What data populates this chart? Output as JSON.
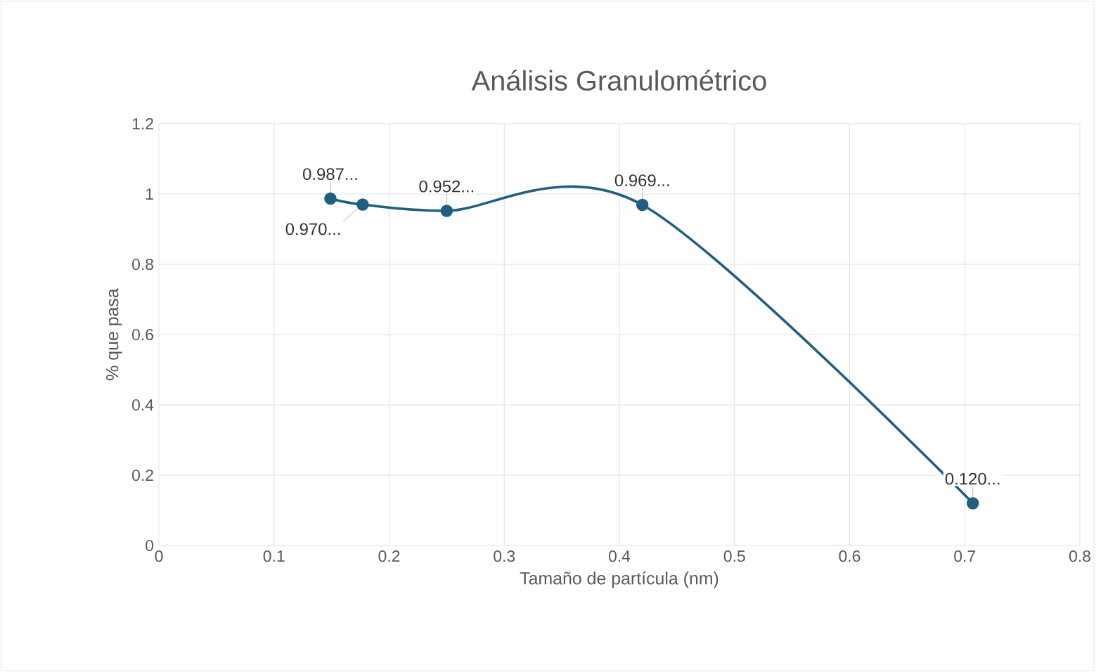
{
  "chart_data": {
    "type": "line",
    "title": "Análisis Granulométrico",
    "xlabel": "Tamaño de partícula (nm)",
    "ylabel": "% que pasa",
    "x": [
      0.149,
      0.177,
      0.25,
      0.42,
      0.707
    ],
    "values": [
      0.987,
      0.97,
      0.952,
      0.969,
      0.12
    ],
    "value_labels": [
      "0.987...",
      "0.970...",
      "0.952...",
      "0.969...",
      "0.120..."
    ],
    "color": "#1f5f7f",
    "marker": "circle",
    "line_style": "solid",
    "grid": true,
    "xlim": [
      0,
      0.8
    ],
    "xticks": [
      0,
      0.1,
      0.2,
      0.3,
      0.4,
      0.5,
      0.6,
      0.7,
      0.8
    ],
    "ylim": [
      0,
      1.2
    ],
    "yticks": [
      0,
      0.2,
      0.4,
      0.6,
      0.8,
      1,
      1.2
    ]
  }
}
